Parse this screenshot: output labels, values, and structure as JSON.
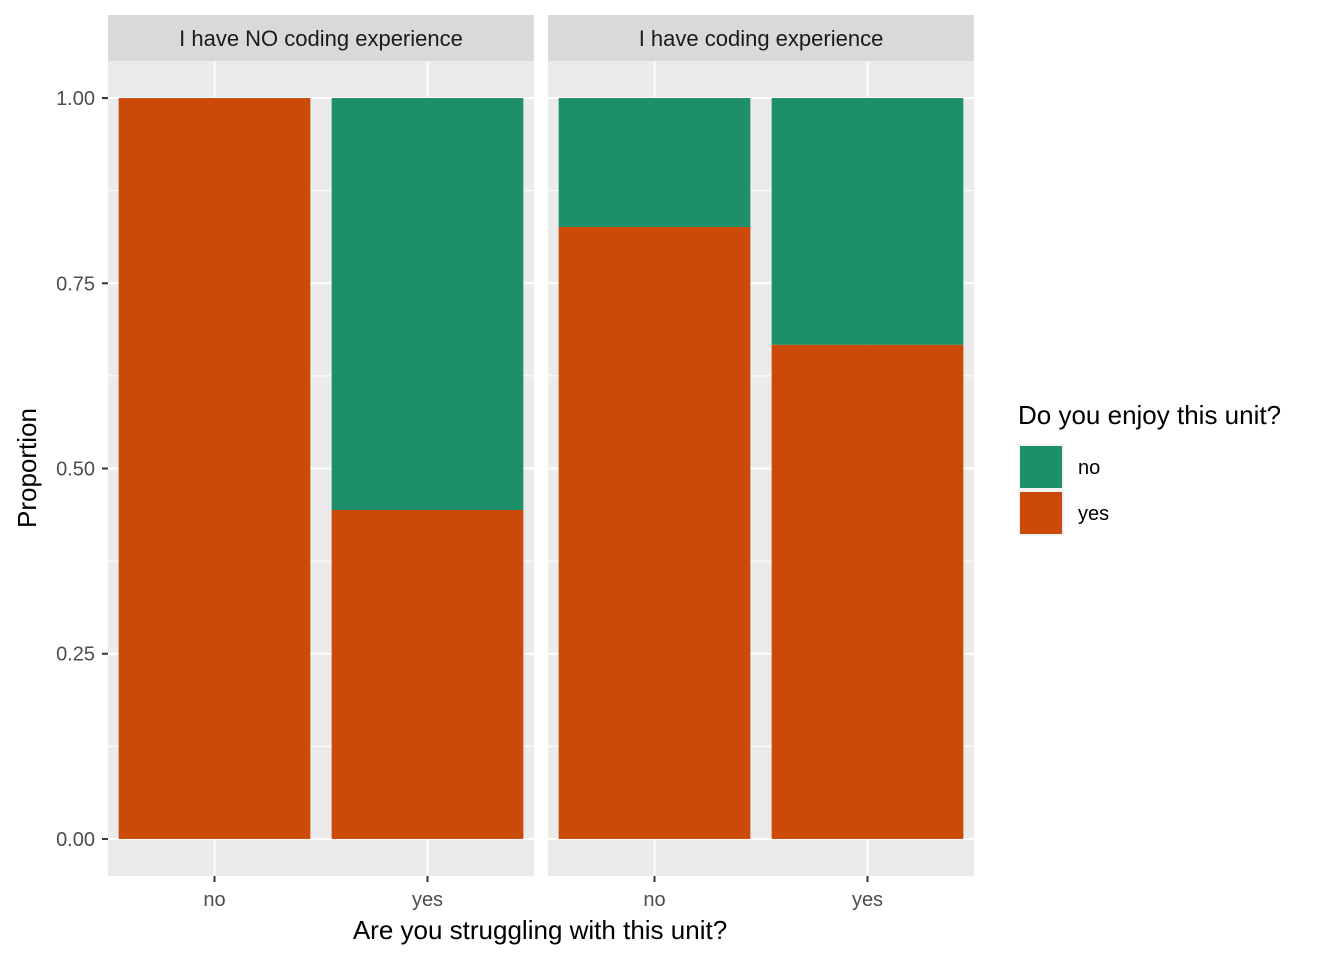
{
  "chart_data": {
    "type": "bar",
    "stacked": true,
    "xlabel": "Are you struggling with this unit?",
    "ylabel": "Proportion",
    "ylim": [
      -0.05,
      1.05
    ],
    "yticks": [
      "0.00",
      "0.25",
      "0.50",
      "0.75",
      "1.00"
    ],
    "ytick_values": [
      0,
      0.25,
      0.5,
      0.75,
      1.0
    ],
    "categories": [
      "no",
      "yes"
    ],
    "grid": true,
    "legend": {
      "title": "Do you enjoy this unit?",
      "position": "right",
      "entries": [
        {
          "label": "no",
          "color": "#1b9e77"
        },
        {
          "label": "yes",
          "color": "#d95f02"
        }
      ]
    },
    "colors": {
      "no": "#1d8f69",
      "yes": "#cc4a09",
      "panel": "#ebebeb",
      "strip": "#d9d9d9"
    },
    "panels": [
      {
        "title": "I have NO coding experience",
        "series": [
          {
            "name": "yes",
            "values": [
              1.0,
              0.444
            ]
          },
          {
            "name": "no",
            "values": [
              0.0,
              0.556
            ]
          }
        ]
      },
      {
        "title": "I have coding experience",
        "series": [
          {
            "name": "yes",
            "values": [
              0.826,
              0.667
            ]
          },
          {
            "name": "no",
            "values": [
              0.174,
              0.333
            ]
          }
        ]
      }
    ]
  }
}
